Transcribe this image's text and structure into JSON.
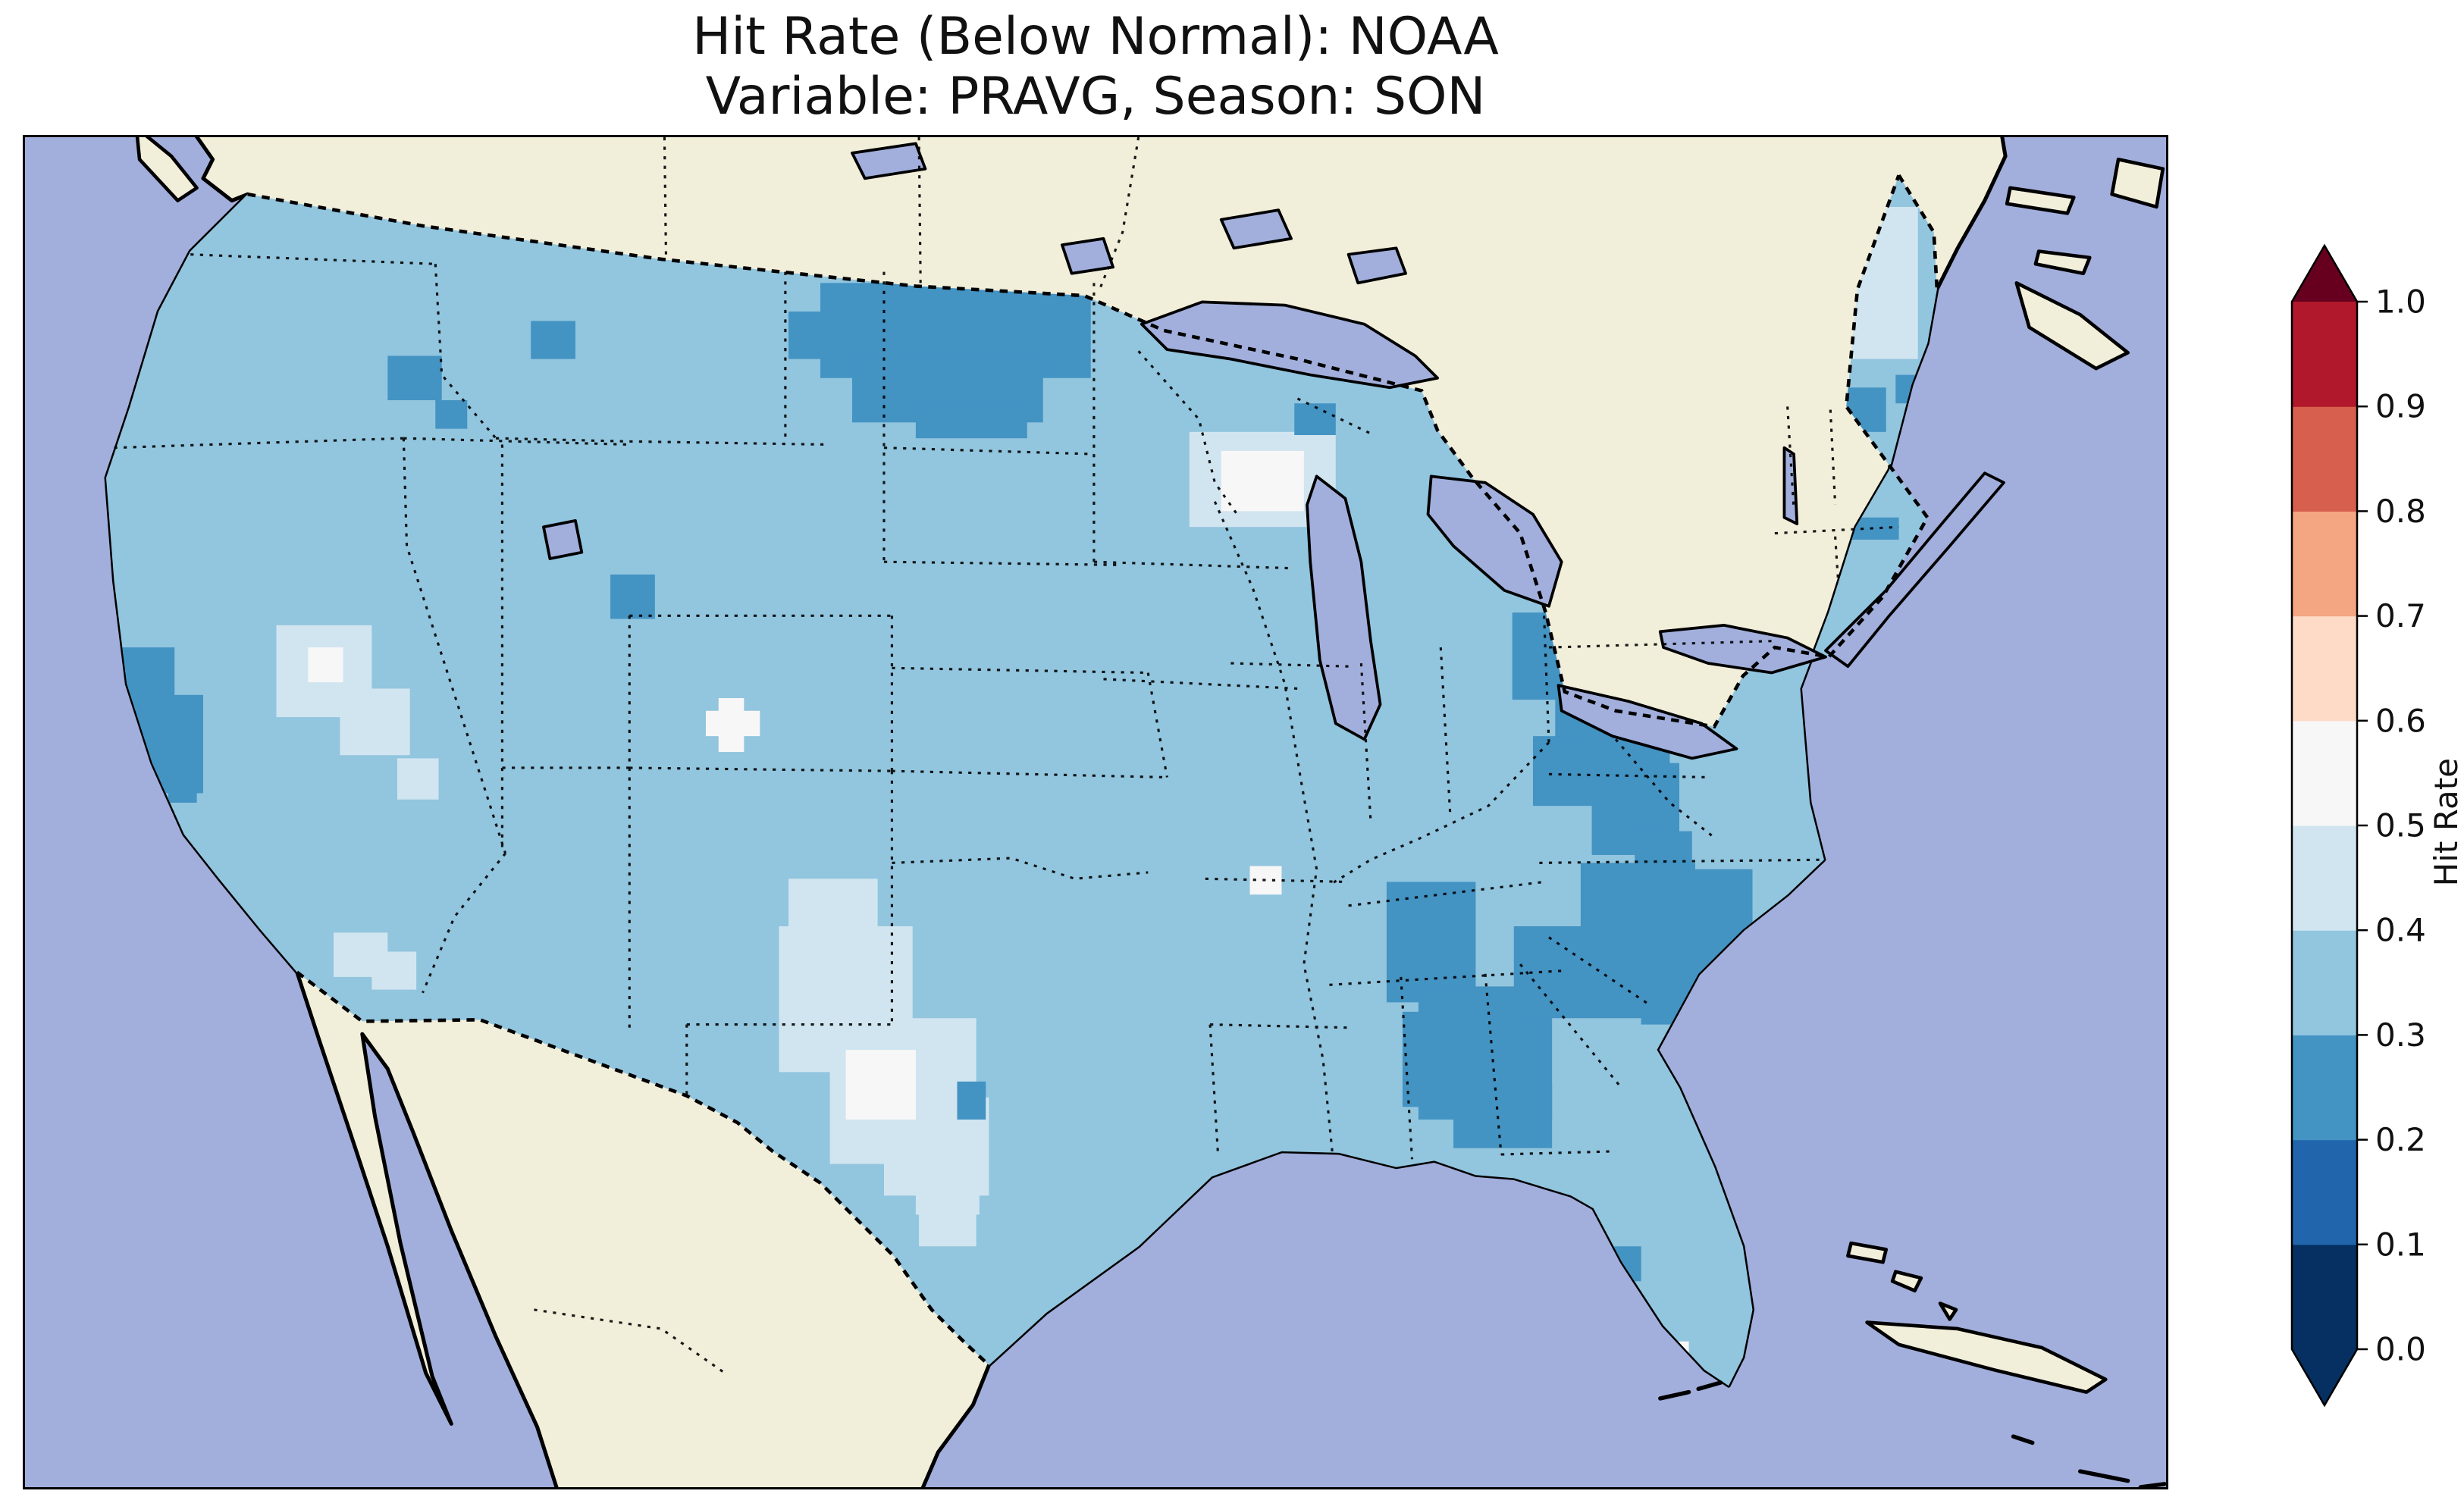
{
  "figure": {
    "title_line1": "Hit Rate (Below Normal): NOAA",
    "title_line2": "Variable: PRAVG, Season: SON"
  },
  "colorbar": {
    "label": "Hit Rate",
    "tick_labels_bottom_to_top": [
      "0.0",
      "0.1",
      "0.2",
      "0.3",
      "0.4",
      "0.5",
      "0.6",
      "0.7",
      "0.8",
      "0.9",
      "1.0"
    ],
    "segments_bottom_to_top": [
      {
        "range": "0.0-0.1",
        "color": "#053061"
      },
      {
        "range": "0.1-0.2",
        "color": "#2166ac"
      },
      {
        "range": "0.2-0.3",
        "color": "#4393c3"
      },
      {
        "range": "0.3-0.4",
        "color": "#92c5de"
      },
      {
        "range": "0.4-0.5",
        "color": "#d1e5f0"
      },
      {
        "range": "0.5-0.6",
        "color": "#f7f7f7"
      },
      {
        "range": "0.6-0.7",
        "color": "#fddbc7"
      },
      {
        "range": "0.7-0.8",
        "color": "#f4a582"
      },
      {
        "range": "0.8-0.9",
        "color": "#d6604d"
      },
      {
        "range": "0.9-1.0",
        "color": "#b2182b"
      }
    ],
    "extend_under_color": "#053061",
    "extend_over_color": "#67001f",
    "outline_color": "#000000"
  },
  "map": {
    "colors": {
      "ocean": "#a2afdc",
      "land": "#f1eeda",
      "bin_0_2_to_0_3": "#4393c3",
      "bin_0_3_to_0_4": "#92c5de",
      "bin_0_4_to_0_5": "#d1e5f0",
      "bin_0_5_to_0_6": "#f7f7f7"
    }
  },
  "chart_data": {
    "type": "heatmap",
    "title": "Hit Rate (Below Normal): NOAA",
    "subtitle": "Variable: PRAVG, Season: SON",
    "region": "Contiguous United States (with surrounding Canada, Mexico, Atlantic and Pacific oceans, Great Lakes)",
    "variable": "PRAVG",
    "season": "SON",
    "metric": "Hit Rate (Below Normal)",
    "colorbar_label": "Hit Rate",
    "colorbar_range": [
      0.0,
      1.0
    ],
    "colorbar_ticks": [
      0.0,
      0.1,
      0.2,
      0.3,
      0.4,
      0.5,
      0.6,
      0.7,
      0.8,
      0.9,
      1.0
    ],
    "colormap": "RdBu_r, discrete 0.1 bins, extended triangles both ends",
    "dominant_bin": "0.3-0.4 over most of the CONUS",
    "estimated_regional_values": [
      {
        "region": "Most of the contiguous US",
        "hit_rate_bin": [
          0.3,
          0.4
        ]
      },
      {
        "region": "North Dakota / northeastern Montana",
        "hit_rate_bin": [
          0.2,
          0.3
        ]
      },
      {
        "region": "Scattered western Montana cells",
        "hit_rate_bin": [
          0.2,
          0.3
        ]
      },
      {
        "region": "Northern California coastal interior",
        "hit_rate_bin": [
          0.2,
          0.3
        ]
      },
      {
        "region": "Small Utah cell",
        "hit_rate_bin": [
          0.2,
          0.3
        ]
      },
      {
        "region": "Ohio / West Virginia / western Pennsylvania Appalachians",
        "hit_rate_bin": [
          0.2,
          0.3
        ]
      },
      {
        "region": "Georgia / South Carolina / eastern Tennessee / coastal Carolinas",
        "hit_rate_bin": [
          0.2,
          0.3
        ]
      },
      {
        "region": "Vermont / New Hampshire spots and Boston coast",
        "hit_rate_bin": [
          0.2,
          0.3
        ]
      },
      {
        "region": "New York City / Long Island coastal cells",
        "hit_rate_bin": [
          0.2,
          0.3
        ]
      },
      {
        "region": "Central Florida spot and small Gulf Coast / south Texas spots",
        "hit_rate_bin": [
          0.2,
          0.3
        ]
      },
      {
        "region": "West and central Texas patch",
        "hit_rate_bin": [
          0.4,
          0.5
        ]
      },
      {
        "region": "Central Nevada and small Arizona / New Mexico patches",
        "hit_rate_bin": [
          0.4,
          0.5
        ]
      },
      {
        "region": "Central Minnesota / Wisconsin patch",
        "hit_rate_bin": [
          0.5,
          0.6
        ]
      },
      {
        "region": "Small Colorado, Missouri and Florida Panhandle cells",
        "hit_rate_bin": [
          0.5,
          0.6
        ]
      }
    ],
    "layout_hints": {
      "legend_position": "vertical colorbar, right side",
      "map_border": "solid black frame",
      "state_borders": "dotted black",
      "national_borders": "dashed black",
      "coastlines": "solid black"
    }
  }
}
